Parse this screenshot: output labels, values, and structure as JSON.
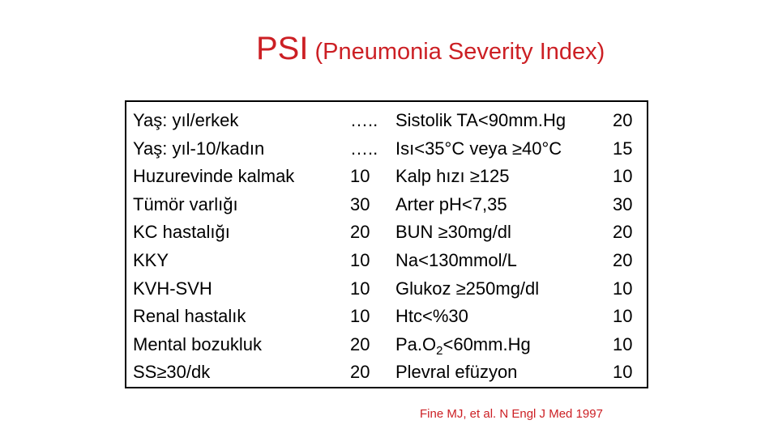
{
  "title": {
    "main": "PSI",
    "subtitle": "(Pneumonia Severity Index)"
  },
  "table": {
    "left_factors": [
      "Yaş: yıl/erkek",
      "Yaş: yıl-10/kadın",
      "Huzurevinde kalmak",
      "Tümör varlığı",
      "KC hastalığı",
      "KKY",
      "KVH-SVH",
      "Renal hastalık",
      "Mental bozukluk",
      "SS≥30/dk"
    ],
    "left_points": [
      "…..",
      "…..",
      "10",
      "30",
      "20",
      "10",
      "10",
      "10",
      "20",
      "20"
    ],
    "right_factors": [
      "Sistolik TA<90mm.Hg",
      "Isı<35°C veya ≥40°C",
      "Kalp hızı ≥125",
      "Arter pH<7,35",
      "BUN ≥30mg/dl",
      "Na<130mmol/L",
      "Glukoz ≥250mg/dl",
      "Htc<%30",
      "Pa.O2<60mm.Hg",
      "Plevral efüzyon"
    ],
    "pao2": {
      "prefix": "Pa.O",
      "subscript": "2",
      "suffix": "<60mm.Hg"
    },
    "right_points": [
      "20",
      "15",
      "10",
      "30",
      "20",
      "20",
      "10",
      "10",
      "10",
      "10"
    ]
  },
  "citation": "Fine MJ, et al. N Engl J Med 1997",
  "colors": {
    "title": "#cc1f24",
    "text": "#000000",
    "border": "#000000"
  }
}
